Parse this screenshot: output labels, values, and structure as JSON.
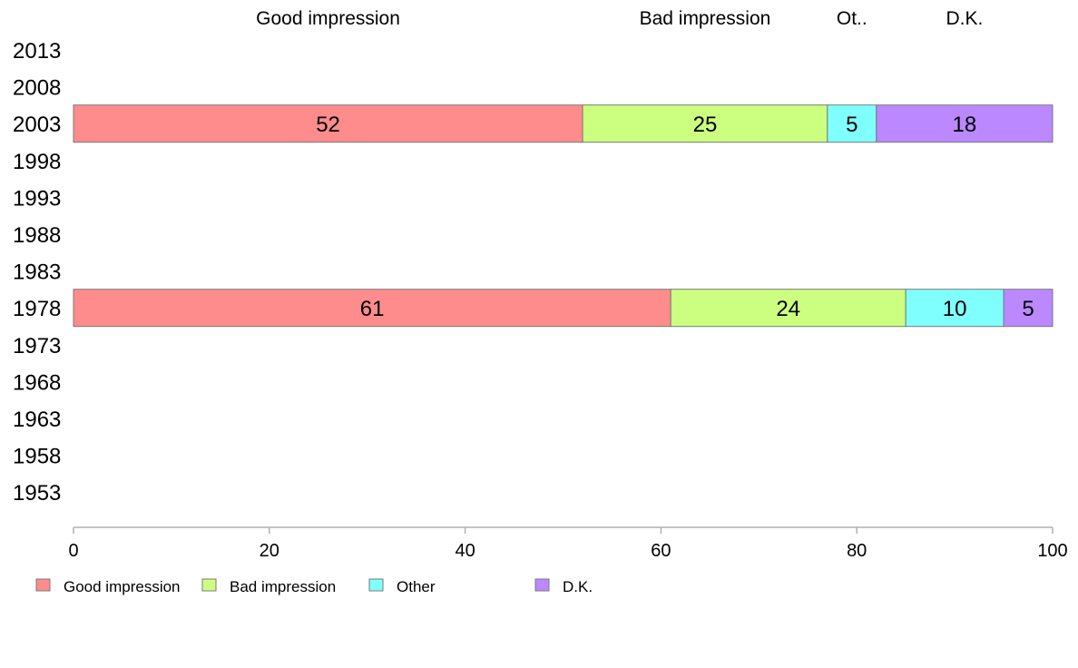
{
  "chart_data": {
    "type": "bar",
    "orientation": "horizontal",
    "stacked": true,
    "categories": [
      "2013",
      "2008",
      "2003",
      "1998",
      "1993",
      "1988",
      "1983",
      "1978",
      "1973",
      "1968",
      "1963",
      "1958",
      "1953"
    ],
    "series": [
      {
        "name": "Good impression",
        "color": "#FF8C8C",
        "values": [
          null,
          null,
          52,
          null,
          null,
          null,
          null,
          61,
          null,
          null,
          null,
          null,
          null
        ]
      },
      {
        "name": "Bad impression",
        "color": "#CCFF80",
        "values": [
          null,
          null,
          25,
          null,
          null,
          null,
          null,
          24,
          null,
          null,
          null,
          null,
          null
        ]
      },
      {
        "name": "Other",
        "color": "#80FFFF",
        "values": [
          null,
          null,
          5,
          null,
          null,
          null,
          null,
          10,
          null,
          null,
          null,
          null,
          null
        ]
      },
      {
        "name": "D.K.",
        "color": "#BB88FF",
        "values": [
          null,
          null,
          18,
          null,
          null,
          null,
          null,
          5,
          null,
          null,
          null,
          null,
          null
        ]
      }
    ],
    "column_headers": [
      "Good impression",
      "Bad impression",
      "Ot..",
      "D.K."
    ],
    "xlim": [
      0,
      100
    ],
    "xticks": [
      0,
      20,
      40,
      60,
      80,
      100
    ],
    "grid": false,
    "legend_position": "bottom"
  }
}
